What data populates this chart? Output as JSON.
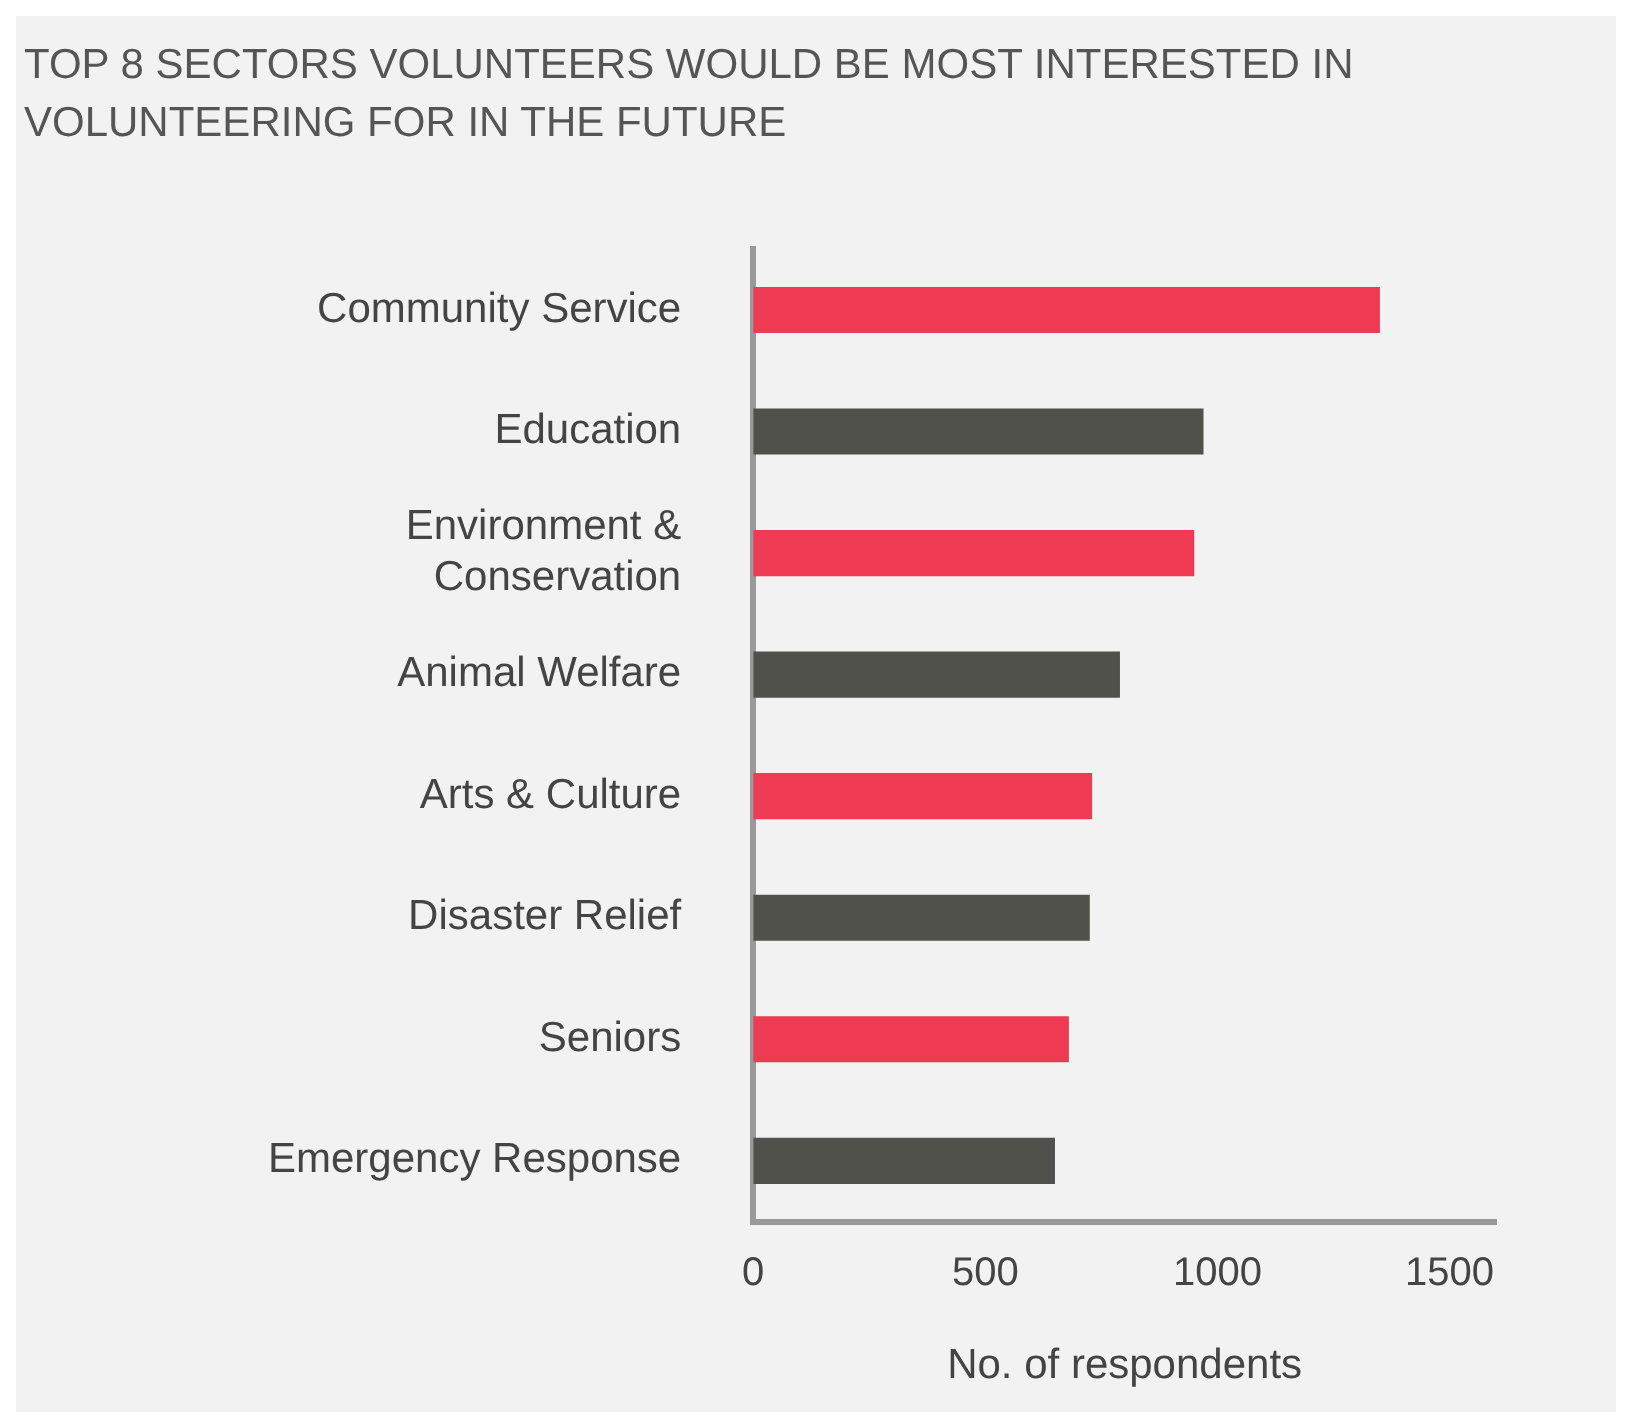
{
  "chart_data": {
    "type": "bar",
    "orientation": "horizontal",
    "title": "TOP 8 SECTORS VOLUNTEERS WOULD BE MOST INTERESTED IN VOLUNTEERING FOR IN THE FUTURE",
    "xlabel": "No. of respondents",
    "categories": [
      "Community Service",
      "Education",
      "Environment & Conservation",
      "Animal Welfare",
      "Arts & Culture",
      "Disaster Relief",
      "Seniors",
      "Emergency Response"
    ],
    "values": [
      1350,
      970,
      950,
      790,
      730,
      725,
      680,
      650
    ],
    "colors": [
      "#ee3a52",
      "#51514c",
      "#ee3a52",
      "#51514c",
      "#ee3a52",
      "#51514c",
      "#ee3a52",
      "#51514c"
    ],
    "xlim": [
      0,
      1600
    ],
    "xticks": [
      0,
      500,
      1000,
      1500
    ],
    "grid": false,
    "legend": false
  }
}
